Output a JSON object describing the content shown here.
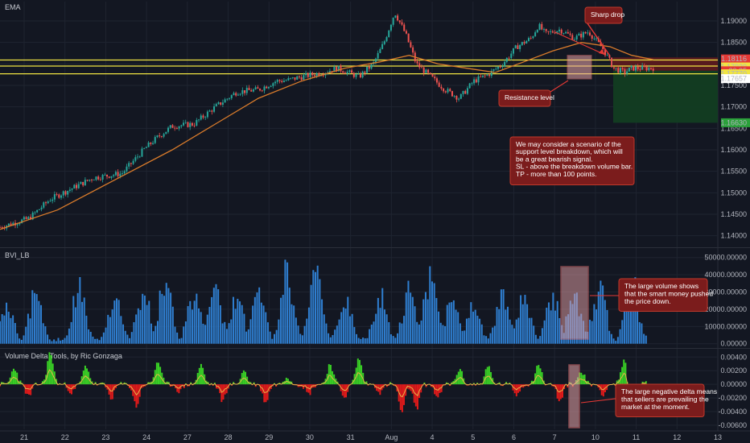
{
  "colors": {
    "background": "#131722",
    "grid": "#1f2430",
    "candle_up": "#26a69a",
    "candle_down": "#ef5350",
    "ema": "#d97b2b",
    "level": "#f0e442",
    "volume_bar": "#2f7fd1",
    "delta_pos": "#39d025",
    "delta_neg": "#e11a1a",
    "delta_line": "#e8b34a",
    "note_bg": "#7b1c1c",
    "note_border": "#c0392b",
    "sl_zone": "#5b1a1f",
    "tp_zone": "#123d22",
    "highlight": "#e8a3a8"
  },
  "panels": {
    "price_title": "EMA",
    "volume_title": "BVI_LB",
    "delta_title": "Volume Delta Tools, by Ric Gonzaga"
  },
  "annotations": {
    "sharp_drop": "Sharp drop",
    "resistance": "Resistance level",
    "scenario": [
      "We may consider a scenario of the",
      "support level breakdown, which will",
      "be a great bearish signal.",
      "SL - above the breakdown volume bar.",
      "TP - more than 100 points."
    ],
    "volume_note": [
      "The large volume shows",
      "that the smart money pushed",
      "the price down."
    ],
    "delta_note": [
      "The large negative delta means",
      "that sellers are prevailing the",
      "market at the moment."
    ]
  },
  "chart_data": [
    {
      "type": "candlestick",
      "title": "EMA",
      "x_ticks": [
        "21",
        "22",
        "23",
        "24",
        "27",
        "28",
        "29",
        "30",
        "31",
        "Aug",
        "4",
        "5",
        "6",
        "7",
        "10",
        "11",
        "12",
        "13"
      ],
      "y_ticks": [
        "1.19000",
        "1.18500",
        "1.18000",
        "1.17500",
        "1.17000",
        "1.16500",
        "1.16000",
        "1.15500",
        "1.15000",
        "1.14500",
        "1.14000"
      ],
      "ylim": [
        1.1375,
        1.1945
      ],
      "price_labels": [
        {
          "text": "1.18116",
          "value": 1.18116,
          "color": "#e53935"
        },
        {
          "text": "1.17930",
          "value": 1.1793,
          "color": "#f0e442"
        },
        {
          "text": "30:25",
          "value": 1.1784,
          "color": "#e53935"
        },
        {
          "text": "1.17770",
          "value": 1.1777,
          "color": "#f0e442"
        },
        {
          "text": "1.17657",
          "value": 1.17657,
          "color": "#ffffff"
        },
        {
          "text": "1.16630",
          "value": 1.1663,
          "color": "#2ba13b"
        }
      ],
      "horizontal_levels": [
        1.1809,
        1.1795,
        1.1777
      ],
      "stop_loss_zone": [
        1.1784,
        1.1815
      ],
      "take_profit_zone": [
        1.1663,
        1.1784
      ],
      "price_path": [
        [
          0,
          1.142
        ],
        [
          0.04,
          1.144
        ],
        [
          0.07,
          1.1485
        ],
        [
          0.1,
          1.151
        ],
        [
          0.13,
          1.1535
        ],
        [
          0.17,
          1.1545
        ],
        [
          0.2,
          1.16
        ],
        [
          0.22,
          1.163
        ],
        [
          0.24,
          1.1655
        ],
        [
          0.27,
          1.166
        ],
        [
          0.3,
          1.17
        ],
        [
          0.33,
          1.1735
        ],
        [
          0.36,
          1.174
        ],
        [
          0.385,
          1.176
        ],
        [
          0.4,
          1.1762
        ],
        [
          0.42,
          1.177
        ],
        [
          0.45,
          1.178
        ],
        [
          0.47,
          1.179
        ],
        [
          0.5,
          1.177
        ],
        [
          0.52,
          1.18
        ],
        [
          0.535,
          1.185
        ],
        [
          0.55,
          1.192
        ],
        [
          0.565,
          1.187
        ],
        [
          0.58,
          1.18
        ],
        [
          0.6,
          1.177
        ],
        [
          0.62,
          1.174
        ],
        [
          0.64,
          1.172
        ],
        [
          0.66,
          1.176
        ],
        [
          0.68,
          1.1775
        ],
        [
          0.7,
          1.18
        ],
        [
          0.72,
          1.184
        ],
        [
          0.74,
          1.186
        ],
        [
          0.75,
          1.189
        ],
        [
          0.76,
          1.187
        ],
        [
          0.78,
          1.188
        ],
        [
          0.8,
          1.186
        ],
        [
          0.82,
          1.1875
        ],
        [
          0.84,
          1.1835
        ],
        [
          0.855,
          1.179
        ],
        [
          0.87,
          1.178
        ],
        [
          0.88,
          1.179
        ],
        [
          0.9,
          1.179
        ],
        [
          0.91,
          1.1791
        ]
      ],
      "ema_path": [
        [
          0,
          1.1415
        ],
        [
          0.08,
          1.146
        ],
        [
          0.16,
          1.153
        ],
        [
          0.24,
          1.16
        ],
        [
          0.3,
          1.166
        ],
        [
          0.36,
          1.172
        ],
        [
          0.42,
          1.176
        ],
        [
          0.48,
          1.179
        ],
        [
          0.53,
          1.1805
        ],
        [
          0.57,
          1.182
        ],
        [
          0.61,
          1.18
        ],
        [
          0.65,
          1.179
        ],
        [
          0.69,
          1.178
        ],
        [
          0.73,
          1.1805
        ],
        [
          0.77,
          1.183
        ],
        [
          0.81,
          1.185
        ],
        [
          0.85,
          1.184
        ],
        [
          0.88,
          1.182
        ],
        [
          0.91,
          1.181
        ]
      ]
    },
    {
      "type": "bar",
      "title": "BVI_LB",
      "y_ticks": [
        "50000.00000",
        "40000.00000",
        "30000.00000",
        "20000.00000",
        "10000.00000",
        "0.00000"
      ],
      "ylim": [
        -2000,
        55000
      ],
      "peaks": [
        {
          "x": 0.01,
          "value": 28000
        },
        {
          "x": 0.05,
          "value": 37000
        },
        {
          "x": 0.11,
          "value": 40000
        },
        {
          "x": 0.16,
          "value": 33000
        },
        {
          "x": 0.2,
          "value": 36000
        },
        {
          "x": 0.23,
          "value": 44000
        },
        {
          "x": 0.27,
          "value": 34000
        },
        {
          "x": 0.3,
          "value": 37000
        },
        {
          "x": 0.33,
          "value": 33000
        },
        {
          "x": 0.36,
          "value": 38000
        },
        {
          "x": 0.4,
          "value": 51000
        },
        {
          "x": 0.44,
          "value": 50000
        },
        {
          "x": 0.48,
          "value": 34000
        },
        {
          "x": 0.53,
          "value": 34000
        },
        {
          "x": 0.57,
          "value": 37000
        },
        {
          "x": 0.6,
          "value": 47000
        },
        {
          "x": 0.63,
          "value": 30000
        },
        {
          "x": 0.66,
          "value": 29000
        },
        {
          "x": 0.7,
          "value": 35000
        },
        {
          "x": 0.73,
          "value": 37000
        },
        {
          "x": 0.77,
          "value": 33000
        },
        {
          "x": 0.8,
          "value": 37000
        },
        {
          "x": 0.835,
          "value": 40000
        },
        {
          "x": 0.88,
          "value": 45000
        },
        {
          "x": 0.9,
          "value": 7000
        }
      ]
    },
    {
      "type": "area",
      "title": "Volume Delta Tools, by Ric Gonzaga",
      "y_ticks": [
        "0.00400",
        "0.00200",
        "0.00000",
        "-0.00200",
        "-0.00400",
        "-0.00600"
      ],
      "ylim": [
        -0.0066,
        0.0051
      ],
      "spikes": [
        {
          "x": 0.02,
          "value": 0.0024
        },
        {
          "x": 0.04,
          "value": -0.0018
        },
        {
          "x": 0.07,
          "value": 0.0046
        },
        {
          "x": 0.1,
          "value": -0.0012
        },
        {
          "x": 0.12,
          "value": 0.0027
        },
        {
          "x": 0.155,
          "value": -0.002
        },
        {
          "x": 0.19,
          "value": -0.0032
        },
        {
          "x": 0.22,
          "value": 0.0034
        },
        {
          "x": 0.25,
          "value": -0.001
        },
        {
          "x": 0.28,
          "value": 0.0028
        },
        {
          "x": 0.31,
          "value": -0.0024
        },
        {
          "x": 0.34,
          "value": 0.002
        },
        {
          "x": 0.37,
          "value": -0.0026
        },
        {
          "x": 0.4,
          "value": 0.0012
        },
        {
          "x": 0.43,
          "value": -0.0014
        },
        {
          "x": 0.46,
          "value": 0.003
        },
        {
          "x": 0.48,
          "value": -0.0018
        },
        {
          "x": 0.5,
          "value": 0.0038
        },
        {
          "x": 0.53,
          "value": -0.0012
        },
        {
          "x": 0.56,
          "value": -0.0042
        },
        {
          "x": 0.58,
          "value": -0.0036
        },
        {
          "x": 0.61,
          "value": -0.002
        },
        {
          "x": 0.64,
          "value": 0.0022
        },
        {
          "x": 0.68,
          "value": 0.0026
        },
        {
          "x": 0.72,
          "value": -0.0015
        },
        {
          "x": 0.75,
          "value": 0.003
        },
        {
          "x": 0.78,
          "value": -0.0025
        },
        {
          "x": 0.81,
          "value": 0.002
        },
        {
          "x": 0.84,
          "value": -0.0014
        },
        {
          "x": 0.87,
          "value": 0.0036
        },
        {
          "x": 0.88,
          "value": -0.0046
        },
        {
          "x": 0.9,
          "value": 0.0006
        }
      ]
    }
  ]
}
